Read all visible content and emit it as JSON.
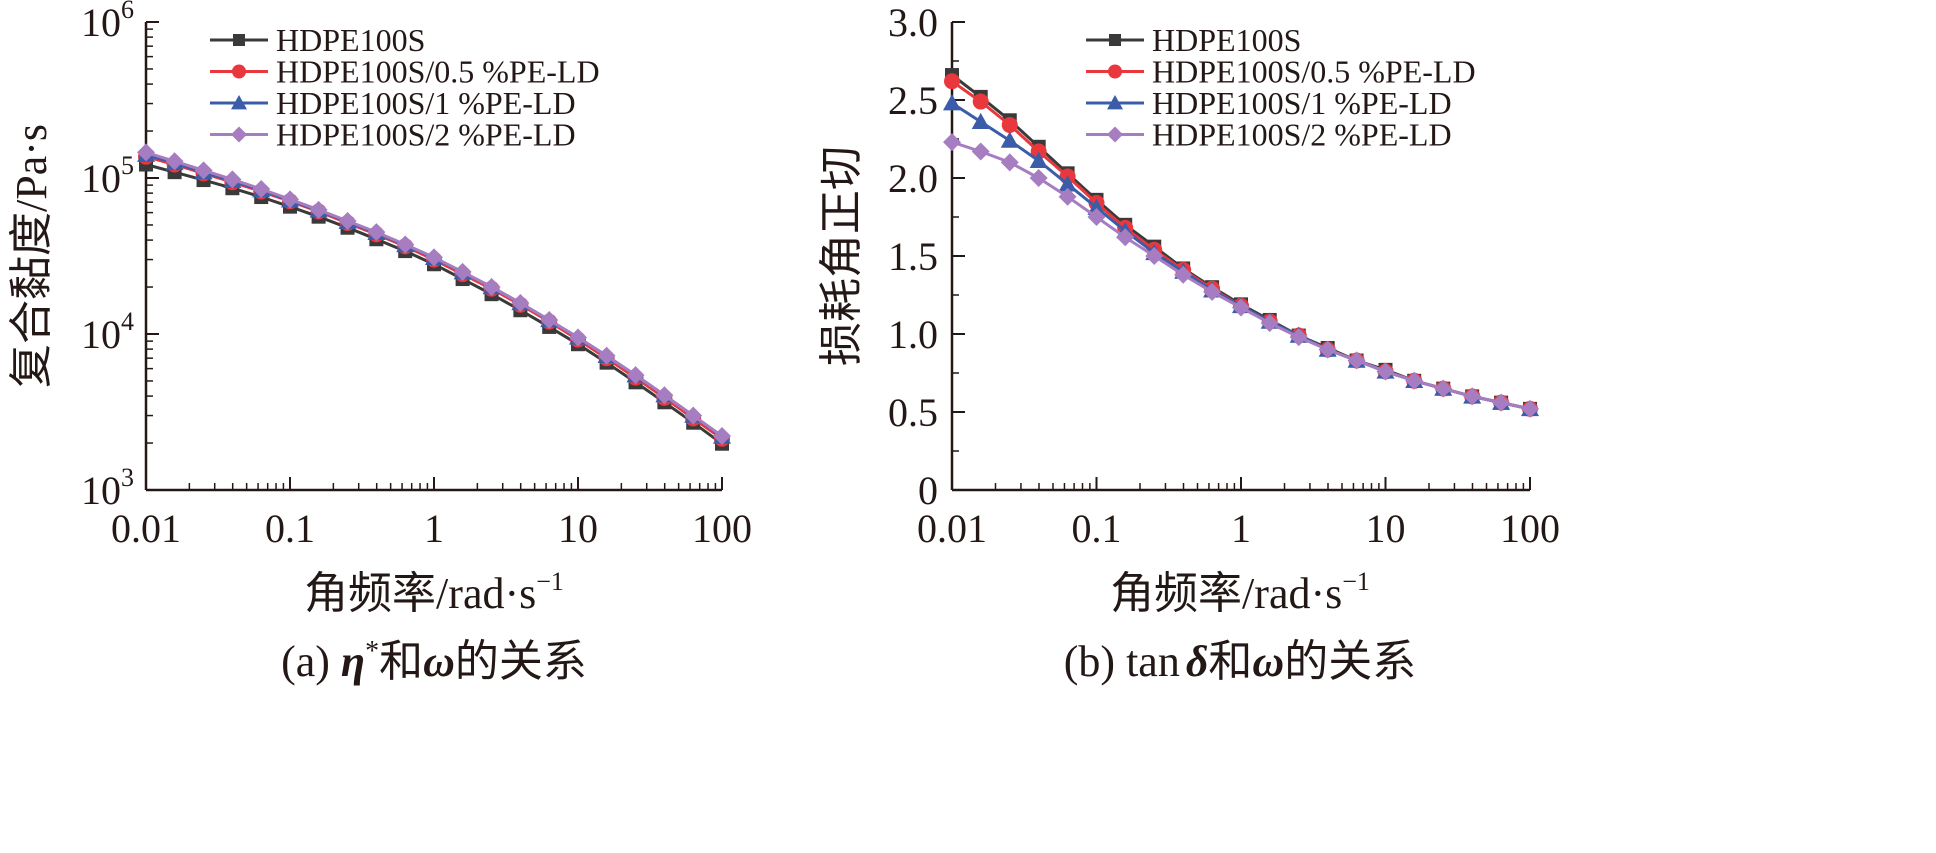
{
  "chart_data": [
    {
      "type": "line",
      "panel": "a",
      "caption_prefix": "(a) ",
      "caption_eta": "η",
      "caption_star": "*",
      "caption_rest": "和",
      "caption_omega": "ω",
      "caption_tail": "的关系",
      "xlabel": "角频率/rad·s",
      "xlabel_sup": "−1",
      "ylabel": "复合黏度/Pa·s",
      "xscale": "log",
      "yscale": "log",
      "xlim": [
        0.01,
        100
      ],
      "ylim": [
        1000,
        1000000
      ],
      "x_ticks": [
        0.01,
        0.1,
        1,
        10,
        100
      ],
      "x_tick_labels": [
        "0.01",
        "0.1",
        "1",
        "10",
        "100"
      ],
      "y_ticks": [
        1000,
        10000,
        100000,
        1000000
      ],
      "y_tick_base": "10",
      "y_tick_exps": [
        "3",
        "4",
        "5",
        "6"
      ],
      "legend_position": "top-right",
      "x": [
        0.01,
        0.0158,
        0.0251,
        0.0398,
        0.0631,
        0.1,
        0.158,
        0.251,
        0.398,
        0.631,
        1,
        1.58,
        2.51,
        3.98,
        6.31,
        10,
        15.8,
        25.1,
        39.8,
        63.1,
        100
      ],
      "series": [
        {
          "name": "HDPE100S",
          "color": "#3a3a3a",
          "marker": "square",
          "values": [
            122000,
            109000,
            97000,
            86000,
            75500,
            65500,
            56500,
            48000,
            40500,
            34000,
            28000,
            22500,
            18000,
            14200,
            11100,
            8600,
            6550,
            4900,
            3650,
            2700,
            1980
          ]
        },
        {
          "name": "HDPE100S/0.5 %PE-LD",
          "color": "#e8383d",
          "marker": "circle",
          "values": [
            137000,
            122000,
            107000,
            94000,
            82000,
            71000,
            61000,
            51500,
            43500,
            36500,
            30000,
            24200,
            19500,
            15400,
            12000,
            9200,
            7000,
            5250,
            3900,
            2880,
            2130
          ]
        },
        {
          "name": "HDPE100S/1 %PE-LD",
          "color": "#3b5ca8",
          "marker": "triangle",
          "values": [
            141000,
            125000,
            109000,
            96000,
            83500,
            72000,
            62000,
            52500,
            44500,
            37200,
            30800,
            24900,
            20000,
            15800,
            12300,
            9500,
            7250,
            5450,
            4050,
            3000,
            2200
          ]
        },
        {
          "name": "HDPE100S/2 %PE-LD",
          "color": "#a77dc1",
          "marker": "diamond",
          "values": [
            146000,
            128000,
            112000,
            98000,
            85000,
            73000,
            62500,
            53000,
            45000,
            37500,
            31000,
            25000,
            20000,
            15800,
            12300,
            9500,
            7250,
            5450,
            4050,
            3000,
            2220
          ]
        }
      ]
    },
    {
      "type": "line",
      "panel": "b",
      "caption_prefix": "(b) tan",
      "caption_delta": "δ",
      "caption_rest": "和",
      "caption_omega": "ω",
      "caption_tail": "的关系",
      "xlabel": "角频率/rad·s",
      "xlabel_sup": "−1",
      "ylabel": "损耗角正切",
      "xscale": "log",
      "yscale": "linear",
      "xlim": [
        0.01,
        100
      ],
      "ylim": [
        0,
        3.0
      ],
      "x_ticks": [
        0.01,
        0.1,
        1,
        10,
        100
      ],
      "x_tick_labels": [
        "0.01",
        "0.1",
        "1",
        "10",
        "100"
      ],
      "y_ticks": [
        0,
        0.5,
        1.0,
        1.5,
        2.0,
        2.5,
        3.0
      ],
      "y_tick_labels": [
        "0",
        "0.5",
        "1.0",
        "1.5",
        "2.0",
        "2.5",
        "3.0"
      ],
      "legend_position": "top-right",
      "x": [
        0.01,
        0.0158,
        0.0251,
        0.0398,
        0.0631,
        0.1,
        0.158,
        0.251,
        0.398,
        0.631,
        1,
        1.58,
        2.51,
        3.98,
        6.31,
        10,
        15.8,
        25.1,
        39.8,
        63.1,
        100
      ],
      "series": [
        {
          "name": "HDPE100S",
          "color": "#3a3a3a",
          "marker": "square",
          "values": [
            2.66,
            2.52,
            2.37,
            2.2,
            2.03,
            1.86,
            1.7,
            1.56,
            1.42,
            1.3,
            1.19,
            1.09,
            0.99,
            0.91,
            0.83,
            0.77,
            0.7,
            0.65,
            0.6,
            0.56,
            0.52
          ]
        },
        {
          "name": "HDPE100S/0.5 %PE-LD",
          "color": "#e8383d",
          "marker": "circle",
          "values": [
            2.62,
            2.49,
            2.34,
            2.17,
            2.01,
            1.84,
            1.68,
            1.54,
            1.41,
            1.29,
            1.18,
            1.08,
            0.99,
            0.9,
            0.83,
            0.76,
            0.7,
            0.65,
            0.6,
            0.56,
            0.52
          ]
        },
        {
          "name": "HDPE100S/1 %PE-LD",
          "color": "#3b5ca8",
          "marker": "triangle",
          "values": [
            2.48,
            2.36,
            2.24,
            2.11,
            1.96,
            1.81,
            1.66,
            1.52,
            1.4,
            1.28,
            1.18,
            1.08,
            0.99,
            0.9,
            0.83,
            0.76,
            0.7,
            0.65,
            0.6,
            0.56,
            0.52
          ]
        },
        {
          "name": "HDPE100S/2 %PE-LD",
          "color": "#a77dc1",
          "marker": "diamond",
          "values": [
            2.23,
            2.17,
            2.1,
            2.0,
            1.88,
            1.75,
            1.62,
            1.5,
            1.38,
            1.27,
            1.17,
            1.07,
            0.98,
            0.9,
            0.83,
            0.76,
            0.7,
            0.65,
            0.6,
            0.56,
            0.52
          ]
        }
      ]
    }
  ]
}
